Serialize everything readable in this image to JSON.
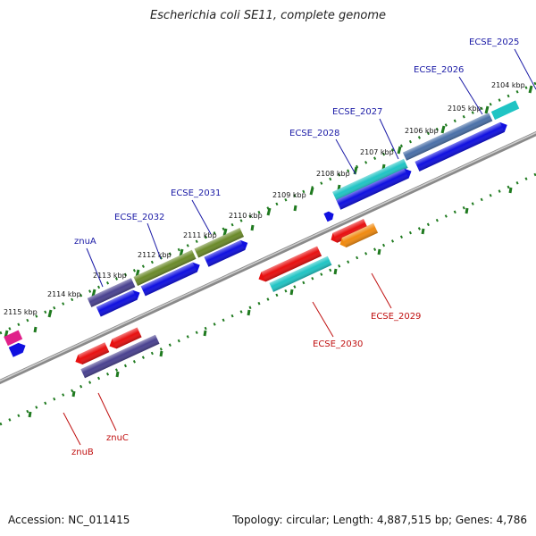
{
  "title": "Escherichia coli SE11, complete genome",
  "footer": {
    "accession": "Accession: NC_011415",
    "summary": "Topology: circular; Length: 4,887,515 bp; Genes: 4,786"
  },
  "colors": {
    "backbone": "#8a8a8a",
    "tick_green": "#1f7a1f",
    "label_forward": "#1a1aa6",
    "label_reverse": "#c01010",
    "gene_blue": "#1010e0",
    "gene_cyan": "#20c4c4",
    "gene_purple": "#4a4290",
    "gene_olive": "#6b8a2a",
    "gene_red": "#e81010",
    "gene_orange": "#f08a10",
    "gene_steel": "#4a70a8",
    "gene_magenta": "#e0208a"
  },
  "kbp_labels": [
    "2104 kbp",
    "2105 kbp",
    "2106 kbp",
    "2107 kbp",
    "2108 kbp",
    "2109 kbp",
    "2110 kbp",
    "2111 kbp",
    "2112 kbp",
    "2113 kbp",
    "2114 kbp",
    "2115 kbp"
  ],
  "gene_labels_forward": [
    "ECSE_2025",
    "ECSE_2026",
    "ECSE_2027",
    "ECSE_2028",
    "ECSE_2031",
    "ECSE_2032",
    "znuA"
  ],
  "gene_labels_reverse": [
    "ECSE_2029",
    "ECSE_2030",
    "znuC",
    "znuB"
  ]
}
